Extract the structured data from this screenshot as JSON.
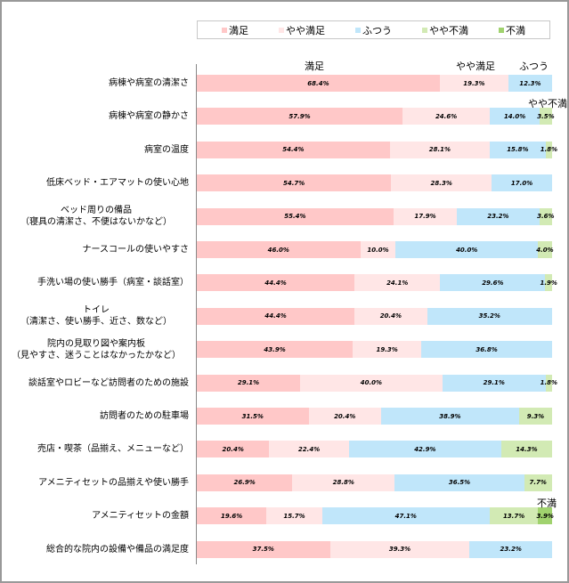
{
  "chart_data": {
    "type": "bar",
    "orientation": "horizontal",
    "stacked": "100%",
    "title": "",
    "xlabel": "",
    "ylabel": "",
    "legend": {
      "position": "top",
      "entries": [
        "満足",
        "やや満足",
        "ふつう",
        "やや不満",
        "不満"
      ]
    },
    "colors": {
      "満足": "#ffc8c8",
      "やや満足": "#ffe6e6",
      "ふつう": "#c0e6fa",
      "やや不満": "#d2eab4",
      "不満": "#a0d26e"
    },
    "column_annotations": [
      {
        "text": "満足",
        "row": 0
      },
      {
        "text": "やや満足",
        "row": 0
      },
      {
        "text": "ふつう",
        "row": 0
      },
      {
        "text": "やや不満",
        "row": 1
      },
      {
        "text": "不満",
        "row": 13
      }
    ],
    "categories": [
      "病棟や病室の清潔さ",
      "病棟や病室の静かさ",
      "病室の温度",
      "低床ベッド・エアマットの使い心地",
      "ベッド周りの備品\n（寝具の清潔さ、不便はないかなど）",
      "ナースコールの使いやすさ",
      "手洗い場の使い勝手（病室・談話室）",
      "トイレ\n（清潔さ、使い勝手、近さ、数など）",
      "院内の見取り図や案内板\n（見やすさ、迷うことはなかったかなど）",
      "談話室やロビーなど訪問者のための施設",
      "訪問者のための駐車場",
      "売店・喫茶（品揃え、メニューなど）",
      "アメニティセットの品揃えや使い勝手",
      "アメニティセットの金額",
      "総合的な院内の設備や備品の満足度"
    ],
    "series": [
      {
        "name": "満足",
        "values": [
          68.4,
          57.9,
          54.4,
          54.7,
          55.4,
          46.0,
          44.4,
          44.4,
          43.9,
          29.1,
          31.5,
          20.4,
          26.9,
          19.6,
          37.5
        ]
      },
      {
        "name": "やや満足",
        "values": [
          19.3,
          24.6,
          28.1,
          28.3,
          17.9,
          10.0,
          24.1,
          20.4,
          19.3,
          40.0,
          20.4,
          22.4,
          28.8,
          15.7,
          39.3
        ]
      },
      {
        "name": "ふつう",
        "values": [
          12.3,
          14.0,
          15.8,
          17.0,
          23.2,
          40.0,
          29.6,
          35.2,
          36.8,
          29.1,
          38.9,
          42.9,
          36.5,
          47.1,
          23.2
        ]
      },
      {
        "name": "やや不満",
        "values": [
          0,
          3.5,
          1.8,
          0,
          3.6,
          4.0,
          1.9,
          0,
          0,
          1.8,
          9.3,
          14.3,
          7.7,
          13.7,
          0
        ]
      },
      {
        "name": "不満",
        "values": [
          0,
          0,
          0,
          0,
          0,
          0,
          0,
          0,
          0,
          0,
          0,
          0,
          0,
          3.9,
          0
        ]
      }
    ],
    "labels": [
      [
        "68.4%",
        "19.3%",
        "12.3%",
        "",
        ""
      ],
      [
        "57.9%",
        "24.6%",
        "14.0%",
        "3.5%",
        ""
      ],
      [
        "54.4%",
        "28.1%",
        "15.8%",
        "1.8%",
        ""
      ],
      [
        "54.7%",
        "28.3%",
        "17.0%",
        "",
        ""
      ],
      [
        "55.4%",
        "17.9%",
        "23.2%",
        "3.6%",
        ""
      ],
      [
        "46.0%",
        "10.0%",
        "40.0%",
        "4.0%",
        ""
      ],
      [
        "44.4%",
        "24.1%",
        "29.6%",
        "1.9%",
        ""
      ],
      [
        "44.4%",
        "20.4%",
        "35.2%",
        "",
        ""
      ],
      [
        "43.9%",
        "19.3%",
        "36.8%",
        "",
        ""
      ],
      [
        "29.1%",
        "40.0%",
        "29.1%",
        "1.8%",
        ""
      ],
      [
        "31.5%",
        "20.4%",
        "38.9%",
        "9.3%",
        ""
      ],
      [
        "20.4%",
        "22.4%",
        "42.9%",
        "14.3%",
        ""
      ],
      [
        "26.9%",
        "28.8%",
        "36.5%",
        "7.7%",
        ""
      ],
      [
        "19.6%",
        "15.7%",
        "47.1%",
        "13.7%",
        "3.9%"
      ],
      [
        "37.5%",
        "39.3%",
        "23.2%",
        "",
        ""
      ]
    ],
    "xlim": [
      0,
      100
    ],
    "grid": false
  }
}
